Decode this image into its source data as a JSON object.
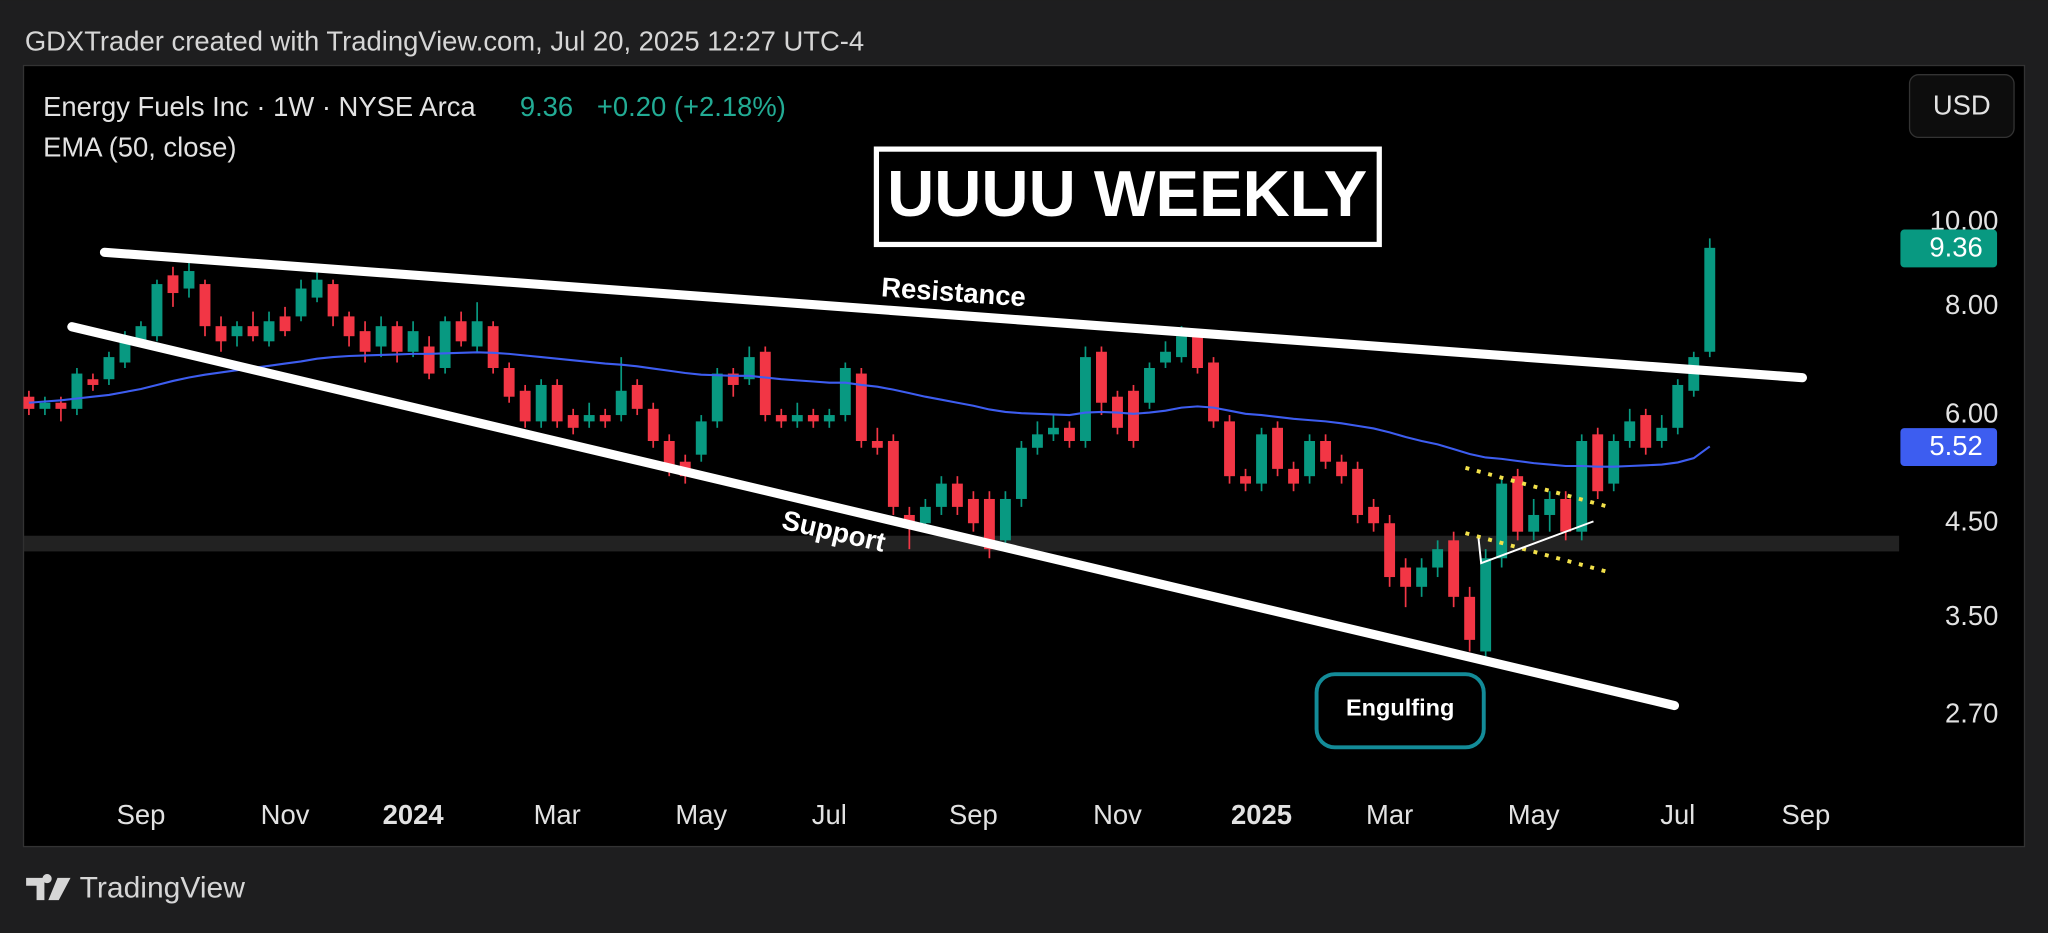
{
  "caption": "GDXTrader created with TradingView.com, Jul 20, 2025 12:27 UTC-4",
  "footer": "TradingView",
  "chart_data": {
    "type": "candlestick",
    "title": "Energy Fuels Inc · 1W · NYSE Arca",
    "last_price": 9.36,
    "change": "+0.20 (+2.18%)",
    "currency": "USD",
    "annotations": [
      "UUUU WEEKLY",
      "Resistance",
      "Support",
      "Engulfing"
    ],
    "log_scale": true,
    "grid": false,
    "up_color": "#089981",
    "down_color": "#f23645",
    "ylim": [
      2.25,
      15.2
    ],
    "yticks": [
      {
        "value": 10,
        "label": "10.00"
      },
      {
        "value": 8,
        "label": "8.00"
      },
      {
        "value": 6,
        "label": "6.00"
      },
      {
        "value": 4.5,
        "label": "4.50"
      },
      {
        "value": 3.5,
        "label": "3.50"
      },
      {
        "value": 2.7,
        "label": "2.70"
      }
    ],
    "categories": [
      null,
      null,
      null,
      null,
      null,
      null,
      null,
      "Sep",
      null,
      null,
      null,
      null,
      null,
      null,
      null,
      null,
      "Nov",
      null,
      null,
      null,
      null,
      null,
      null,
      null,
      "2024",
      null,
      null,
      null,
      null,
      null,
      null,
      null,
      null,
      "Mar",
      null,
      null,
      null,
      null,
      null,
      null,
      null,
      null,
      "May",
      null,
      null,
      null,
      null,
      null,
      null,
      null,
      "Jul",
      null,
      null,
      null,
      null,
      null,
      null,
      null,
      null,
      "Sep",
      null,
      null,
      null,
      null,
      null,
      null,
      null,
      null,
      "Nov",
      null,
      null,
      null,
      null,
      null,
      null,
      null,
      null,
      "2025",
      null,
      null,
      null,
      null,
      null,
      null,
      null,
      "Mar",
      null,
      null,
      null,
      null,
      null,
      null,
      null,
      null,
      "May",
      null,
      null,
      null,
      null,
      null,
      null,
      null,
      null,
      "Jul",
      null,
      null,
      null,
      null,
      null,
      null,
      null,
      "Sep",
      null,
      null,
      null,
      null,
      null
    ],
    "open": [
      6.3,
      6.1,
      6.2,
      6.1,
      6.6,
      6.6,
      6.9,
      7.3,
      7.4,
      8.7,
      8.4,
      8.5,
      7.6,
      7.4,
      7.6,
      7.3,
      7.8,
      7.8,
      8.2,
      8.5,
      7.8,
      7.5,
      7.2,
      7.6,
      7.1,
      7.2,
      6.8,
      7.7,
      7.2,
      7.6,
      6.8,
      6.4,
      5.9,
      6.5,
      6.0,
      5.9,
      6.0,
      6.0,
      6.5,
      6.1,
      5.6,
      5.3,
      5.4,
      5.9,
      6.7,
      6.6,
      7.1,
      6.0,
      5.9,
      6.0,
      5.9,
      6.0,
      6.7,
      5.6,
      5.6,
      4.6,
      4.5,
      4.7,
      5.0,
      4.8,
      4.8,
      4.3,
      4.8,
      5.5,
      5.7,
      5.8,
      5.6,
      7.1,
      6.3,
      6.4,
      6.2,
      6.9,
      7.0,
      7.4,
      6.9,
      5.9,
      5.1,
      5.0,
      5.8,
      5.2,
      5.1,
      5.6,
      5.3,
      5.2,
      4.7,
      4.5,
      4.0,
      3.8,
      4.0,
      4.3,
      3.7,
      3.2,
      4.1,
      5.1,
      4.4,
      4.6,
      4.8,
      4.4,
      5.7,
      5.0,
      5.6,
      6.0,
      5.6,
      5.8,
      6.4,
      7.1,
      null,
      null,
      null,
      null,
      null,
      null,
      null,
      null,
      null,
      null,
      null
    ],
    "high": [
      6.4,
      6.3,
      6.3,
      6.8,
      6.7,
      7.1,
      7.5,
      7.7,
      8.6,
      8.9,
      9.2,
      8.6,
      7.8,
      7.7,
      7.9,
      7.9,
      8.0,
      8.6,
      8.9,
      8.6,
      7.9,
      7.7,
      7.8,
      7.7,
      7.7,
      7.4,
      7.8,
      7.9,
      8.1,
      7.7,
      6.9,
      6.5,
      6.6,
      6.6,
      6.1,
      6.2,
      6.1,
      7.0,
      6.6,
      6.2,
      5.7,
      5.4,
      6.0,
      6.8,
      6.8,
      7.2,
      7.2,
      6.1,
      6.2,
      6.1,
      6.1,
      6.9,
      6.8,
      5.8,
      5.7,
      4.7,
      4.8,
      5.1,
      5.1,
      4.9,
      4.9,
      4.9,
      5.6,
      5.9,
      6.0,
      5.9,
      7.2,
      7.2,
      6.4,
      6.5,
      6.9,
      7.3,
      7.6,
      7.5,
      7.0,
      6.0,
      5.2,
      5.8,
      5.9,
      5.3,
      5.7,
      5.7,
      5.4,
      5.3,
      4.8,
      4.6,
      4.1,
      4.1,
      4.3,
      4.4,
      3.8,
      4.2,
      5.1,
      5.2,
      4.8,
      4.9,
      4.9,
      5.7,
      5.8,
      5.7,
      6.1,
      6.1,
      6.0,
      6.6,
      7.1,
      9.6,
      null,
      null,
      null,
      null,
      null,
      null,
      null,
      null,
      null,
      null,
      null
    ],
    "low": [
      6.0,
      6.0,
      5.9,
      6.0,
      6.4,
      6.5,
      6.8,
      7.2,
      7.3,
      8.0,
      8.2,
      7.4,
      7.1,
      7.2,
      7.3,
      7.2,
      7.4,
      7.7,
      8.1,
      7.6,
      7.2,
      6.9,
      7.0,
      6.9,
      7.0,
      6.6,
      6.7,
      7.2,
      7.1,
      6.7,
      6.2,
      5.8,
      5.8,
      5.8,
      5.7,
      5.8,
      5.8,
      5.9,
      6.0,
      5.5,
      5.1,
      5.0,
      5.3,
      5.8,
      6.3,
      6.5,
      5.9,
      5.8,
      5.8,
      5.8,
      5.8,
      5.9,
      5.5,
      5.4,
      4.6,
      4.2,
      4.4,
      4.6,
      4.6,
      4.4,
      4.1,
      4.2,
      4.7,
      5.4,
      5.6,
      5.5,
      5.5,
      6.0,
      5.7,
      5.5,
      6.1,
      6.8,
      6.9,
      6.7,
      5.8,
      5.0,
      4.9,
      4.9,
      5.1,
      4.9,
      5.0,
      5.2,
      5.0,
      4.5,
      4.4,
      3.8,
      3.6,
      3.7,
      3.9,
      3.6,
      3.2,
      3.1,
      4.0,
      4.3,
      4.3,
      4.4,
      4.3,
      4.3,
      4.8,
      4.9,
      5.5,
      5.4,
      5.5,
      5.7,
      6.3,
      7.0,
      null,
      null,
      null,
      null,
      null,
      null,
      null,
      null,
      null,
      null,
      null
    ],
    "close": [
      6.1,
      6.2,
      6.1,
      6.7,
      6.5,
      7.0,
      7.4,
      7.6,
      8.5,
      8.3,
      8.8,
      7.6,
      7.3,
      7.6,
      7.4,
      7.7,
      7.5,
      8.4,
      8.6,
      7.8,
      7.4,
      7.1,
      7.6,
      7.1,
      7.5,
      6.7,
      7.7,
      7.3,
      7.7,
      6.8,
      6.3,
      5.9,
      6.5,
      5.9,
      5.8,
      6.0,
      5.9,
      6.4,
      6.1,
      5.6,
      5.2,
      5.1,
      5.9,
      6.7,
      6.5,
      7.0,
      6.0,
      5.9,
      6.0,
      5.9,
      6.0,
      6.8,
      5.6,
      5.5,
      4.7,
      4.5,
      4.7,
      5.0,
      4.7,
      4.5,
      4.2,
      4.8,
      5.5,
      5.7,
      5.8,
      5.6,
      7.0,
      6.2,
      5.8,
      5.6,
      6.8,
      7.1,
      7.4,
      6.8,
      5.9,
      5.1,
      5.0,
      5.7,
      5.2,
      5.0,
      5.6,
      5.3,
      5.1,
      4.6,
      4.5,
      3.9,
      3.8,
      4.0,
      4.2,
      3.7,
      3.3,
      4.1,
      5.0,
      4.4,
      4.6,
      4.8,
      4.4,
      5.6,
      4.9,
      5.6,
      5.9,
      5.5,
      5.8,
      6.5,
      7.0,
      9.36,
      null,
      null,
      null,
      null,
      null,
      null,
      null,
      null,
      null,
      null,
      null
    ],
    "overlays": [
      {
        "name": "EMA (50, close)",
        "color": "#3d5df0",
        "last_value": 5.52,
        "values": [
          6.2,
          6.22,
          6.24,
          6.27,
          6.3,
          6.33,
          6.38,
          6.43,
          6.5,
          6.57,
          6.63,
          6.68,
          6.72,
          6.76,
          6.8,
          6.84,
          6.88,
          6.92,
          6.97,
          7.0,
          7.02,
          7.03,
          7.04,
          7.05,
          7.06,
          7.06,
          7.07,
          7.08,
          7.09,
          7.08,
          7.06,
          7.03,
          7.0,
          6.97,
          6.94,
          6.91,
          6.88,
          6.86,
          6.83,
          6.79,
          6.75,
          6.71,
          6.68,
          6.67,
          6.66,
          6.66,
          6.63,
          6.6,
          6.58,
          6.56,
          6.54,
          6.54,
          6.5,
          6.47,
          6.42,
          6.36,
          6.3,
          6.25,
          6.2,
          6.15,
          6.09,
          6.05,
          6.03,
          6.02,
          6.01,
          6.0,
          6.04,
          6.05,
          6.04,
          6.02,
          6.04,
          6.07,
          6.12,
          6.14,
          6.12,
          6.07,
          6.02,
          6.0,
          5.97,
          5.94,
          5.92,
          5.9,
          5.87,
          5.83,
          5.79,
          5.73,
          5.66,
          5.6,
          5.55,
          5.48,
          5.41,
          5.36,
          5.34,
          5.31,
          5.28,
          5.26,
          5.24,
          5.24,
          5.23,
          5.23,
          5.24,
          5.25,
          5.26,
          5.29,
          5.35,
          5.52,
          null,
          null,
          null,
          null,
          null,
          null,
          null,
          null,
          null,
          null,
          null
        ]
      }
    ]
  }
}
